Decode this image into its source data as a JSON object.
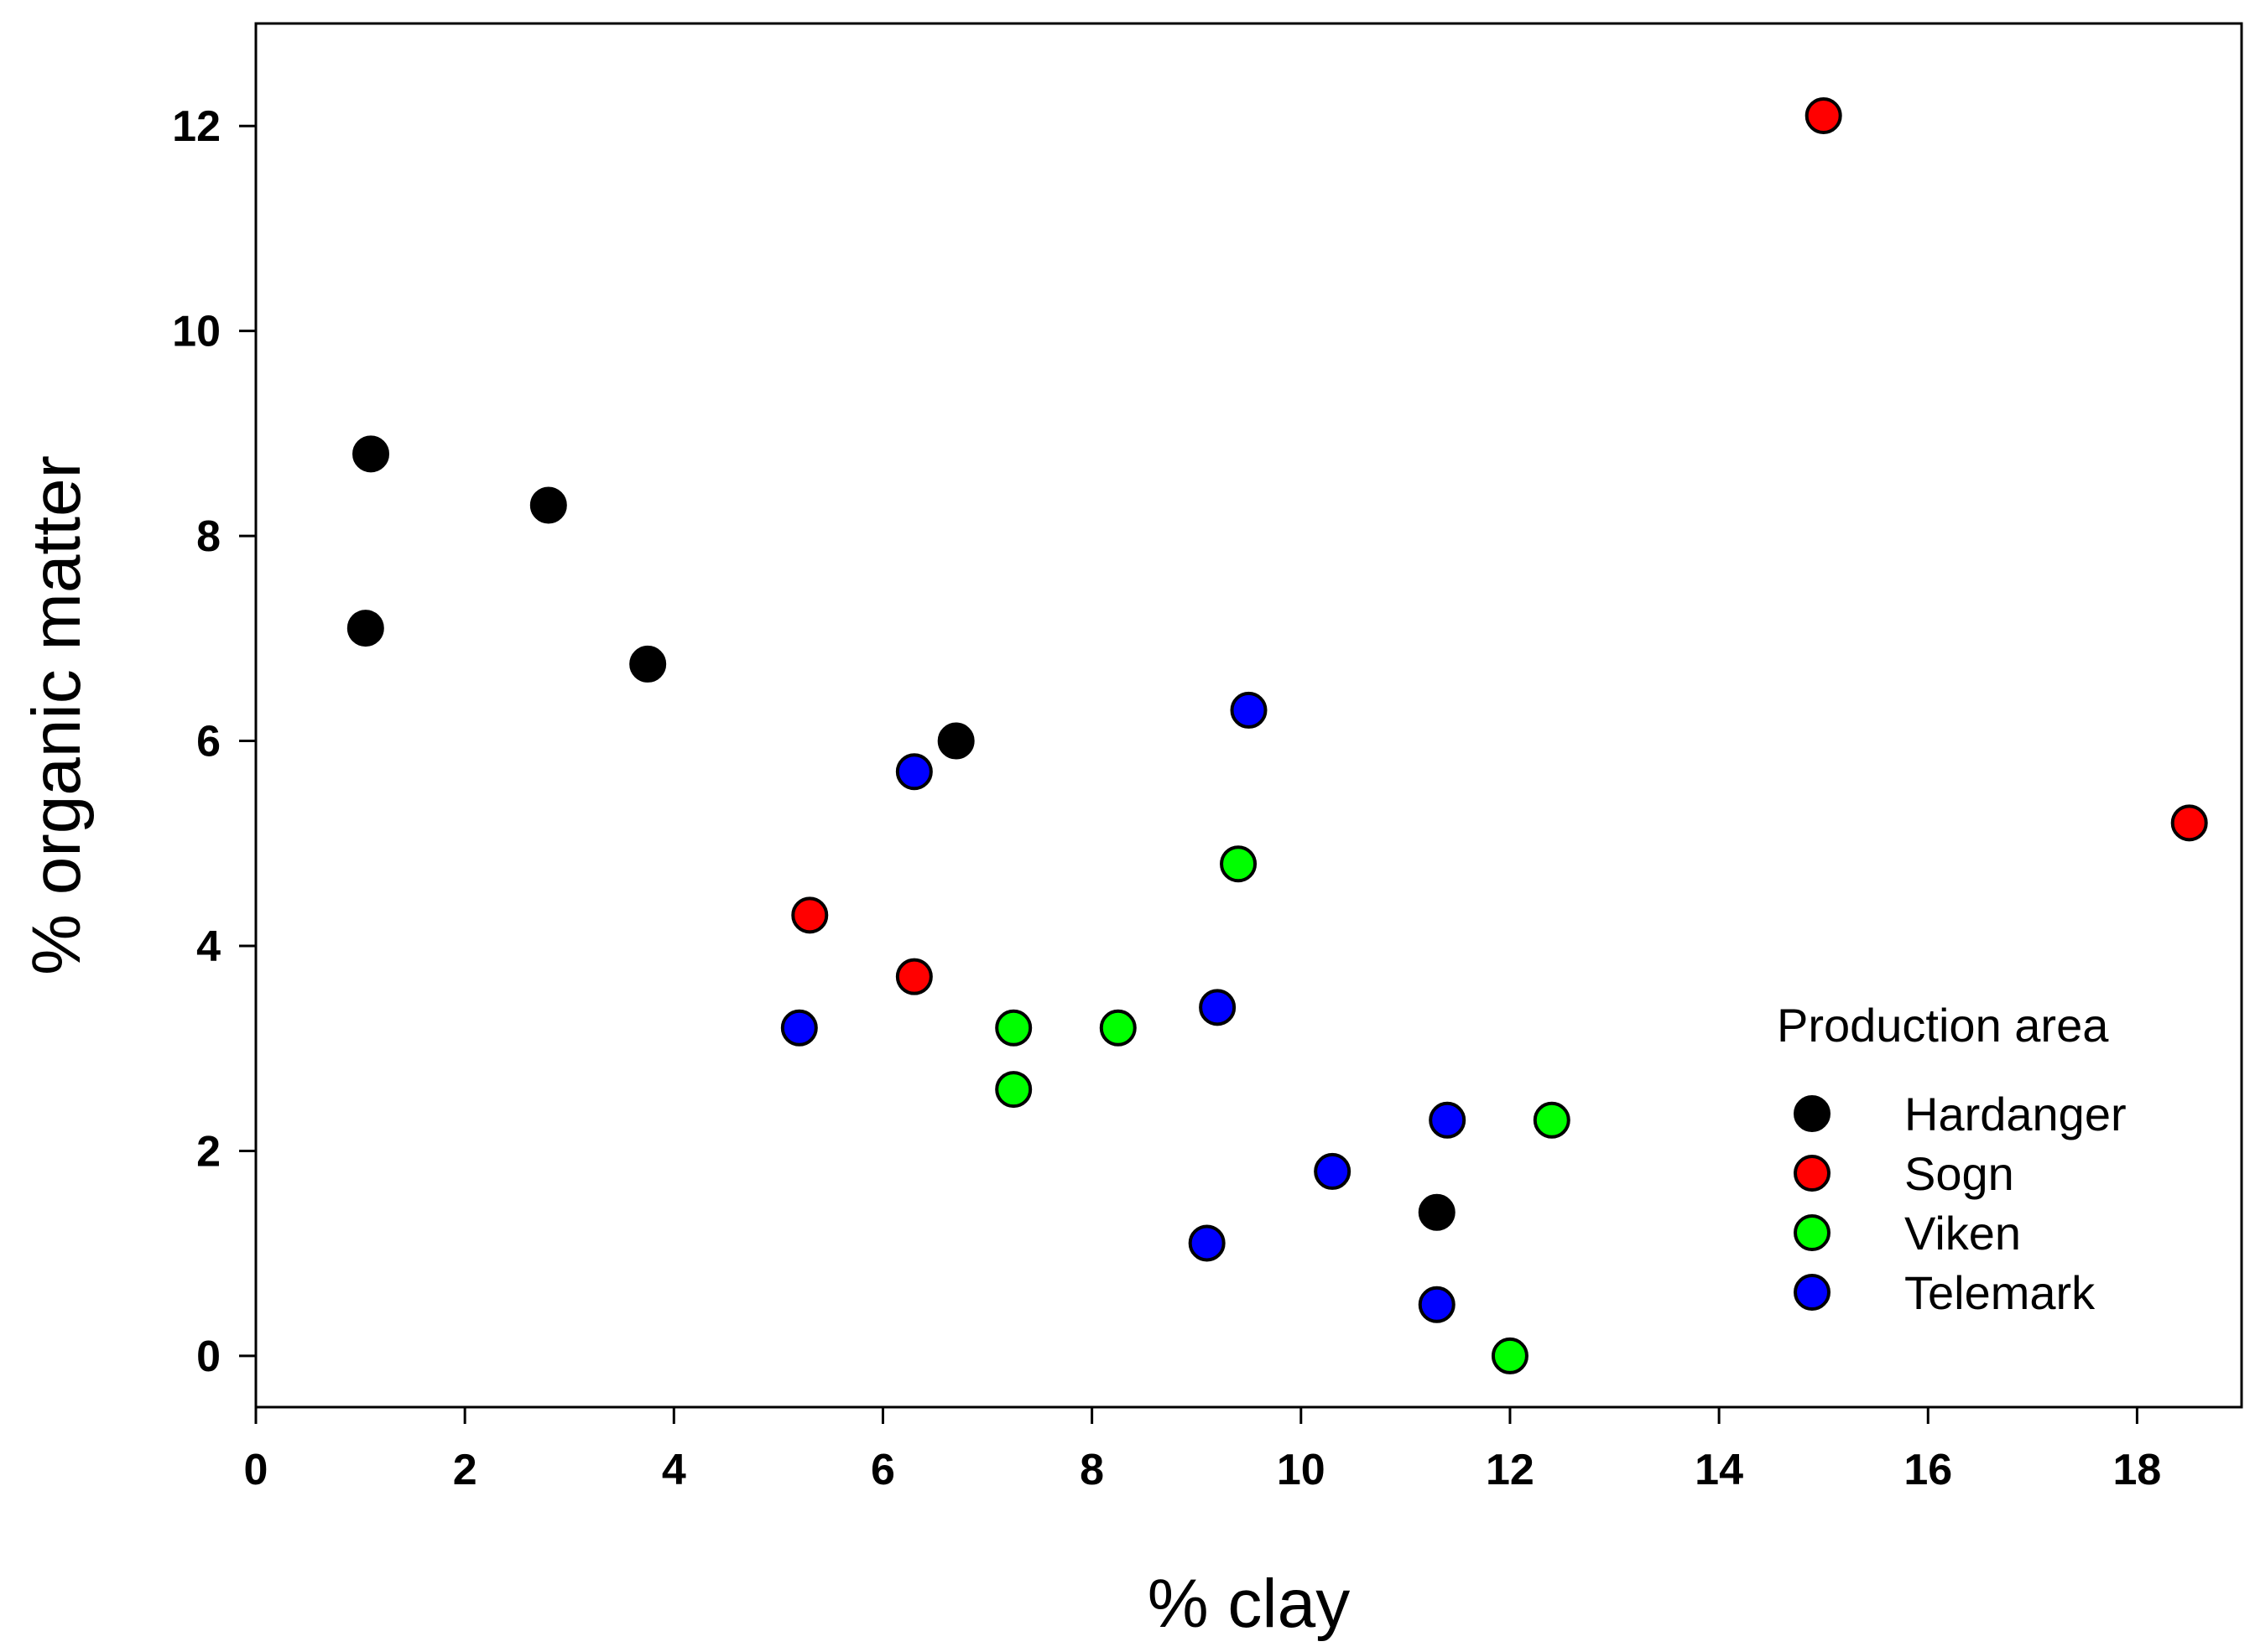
{
  "chart_data": {
    "type": "scatter",
    "title": "",
    "xlabel": "% clay",
    "ylabel": "% organic matter",
    "xlim": [
      0,
      19
    ],
    "ylim": [
      -0.5,
      13
    ],
    "xticks": [
      "0",
      "2",
      "4",
      "6",
      "8",
      "10",
      "12",
      "14",
      "16",
      "18"
    ],
    "yticks": [
      "0",
      "2",
      "4",
      "6",
      "8",
      "10",
      "12"
    ],
    "grid": false,
    "legend": {
      "title": "Production area",
      "position": "bottom-right"
    },
    "series": [
      {
        "name": "Hardanger",
        "color": "#000000",
        "points": [
          {
            "x": 1.1,
            "y": 8.8
          },
          {
            "x": 1.05,
            "y": 7.1
          },
          {
            "x": 2.8,
            "y": 8.3
          },
          {
            "x": 3.75,
            "y": 6.75
          },
          {
            "x": 6.7,
            "y": 6.0
          },
          {
            "x": 11.3,
            "y": 1.4
          }
        ]
      },
      {
        "name": "Sogn",
        "color": "#ff0000",
        "points": [
          {
            "x": 15.0,
            "y": 12.1
          },
          {
            "x": 18.5,
            "y": 5.2
          },
          {
            "x": 5.3,
            "y": 4.3
          },
          {
            "x": 6.3,
            "y": 3.7
          }
        ]
      },
      {
        "name": "Viken",
        "color": "#00ff00",
        "points": [
          {
            "x": 9.4,
            "y": 4.8
          },
          {
            "x": 7.25,
            "y": 3.2
          },
          {
            "x": 8.25,
            "y": 3.2
          },
          {
            "x": 7.25,
            "y": 2.6
          },
          {
            "x": 12.4,
            "y": 2.3
          },
          {
            "x": 12.0,
            "y": 0.0
          }
        ]
      },
      {
        "name": "Telemark",
        "color": "#0000ff",
        "points": [
          {
            "x": 9.5,
            "y": 6.3
          },
          {
            "x": 6.3,
            "y": 5.7
          },
          {
            "x": 9.2,
            "y": 3.4
          },
          {
            "x": 5.2,
            "y": 3.2
          },
          {
            "x": 11.4,
            "y": 2.3
          },
          {
            "x": 10.3,
            "y": 1.8
          },
          {
            "x": 9.1,
            "y": 1.1
          },
          {
            "x": 11.3,
            "y": 0.5
          }
        ]
      }
    ]
  }
}
